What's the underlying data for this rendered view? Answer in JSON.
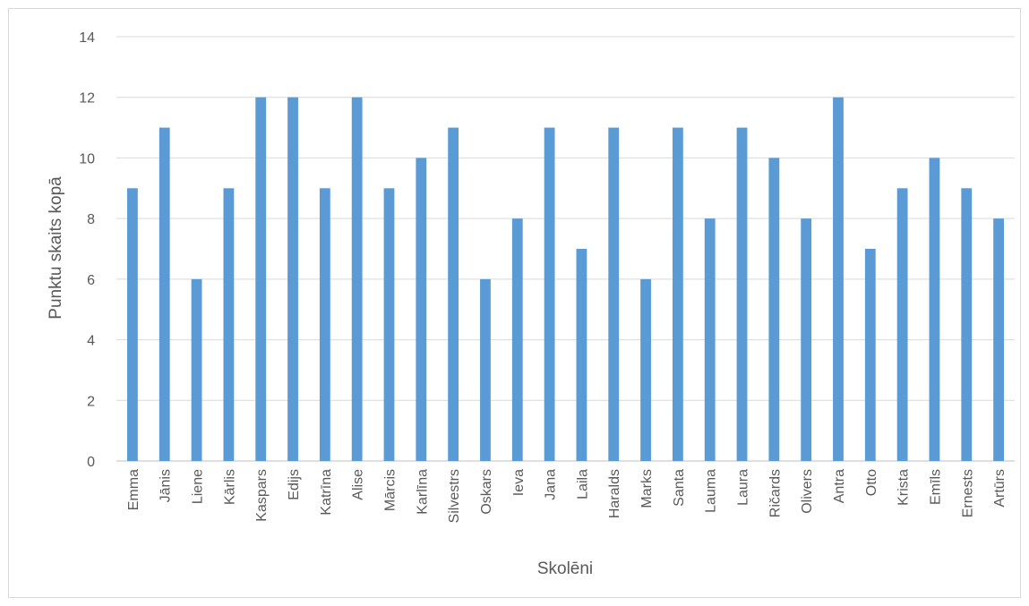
{
  "chart_data": {
    "type": "bar",
    "xlabel": "Skolēni",
    "ylabel": "Punktu skaits kopā",
    "ylim": [
      0,
      14
    ],
    "yticks": [
      "0",
      "2",
      "4",
      "6",
      "8",
      "10",
      "12",
      "14"
    ],
    "grid": true,
    "legend": "none",
    "bar_color": "#5b9bd5",
    "categories": [
      "Emma",
      "Jānis",
      "Liene",
      "Kārlis",
      "Kaspars",
      "Edijs",
      "Katrīna",
      "Alise",
      "Mārcis",
      "Karlīna",
      "Silvestrs",
      "Oskars",
      "Ieva",
      "Jana",
      "Laila",
      "Haralds",
      "Marks",
      "Santa",
      "Lauma",
      "Laura",
      "Ričards",
      "Olivers",
      "Antra",
      "Otto",
      "Krista",
      "Emīls",
      "Ernests",
      "Artūrs"
    ],
    "values": [
      9,
      11,
      6,
      9,
      12,
      12,
      9,
      12,
      9,
      10,
      11,
      6,
      8,
      11,
      7,
      11,
      6,
      11,
      8,
      11,
      10,
      8,
      12,
      7,
      9,
      10,
      9,
      8
    ]
  }
}
